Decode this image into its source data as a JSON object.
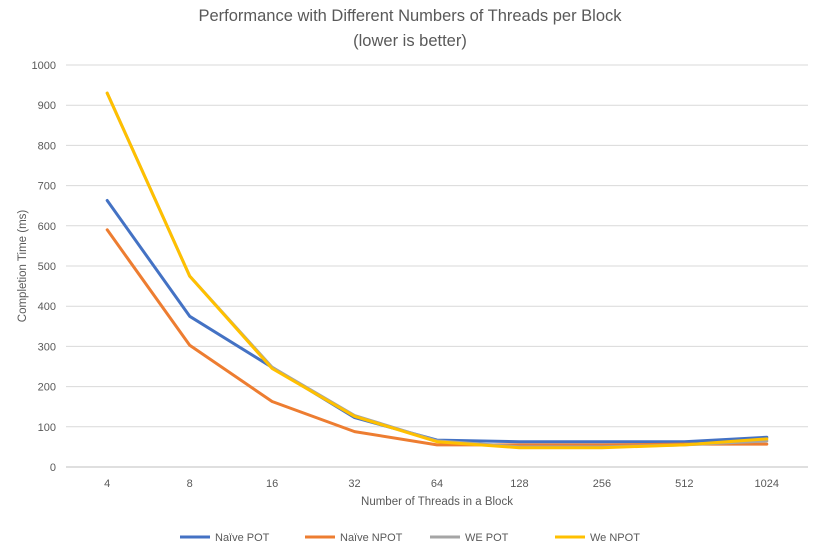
{
  "chart_data": {
    "type": "line",
    "title": "Performance with Different Numbers of Threads per Block",
    "subtitle": "(lower is better)",
    "xlabel": "Number of Threads in a Block",
    "ylabel": "Completion Time (ms)",
    "categories": [
      "4",
      "8",
      "16",
      "32",
      "64",
      "128",
      "256",
      "512",
      "1024"
    ],
    "ylim": [
      0,
      1000
    ],
    "yticks": [
      "0",
      "100",
      "200",
      "300",
      "400",
      "500",
      "600",
      "700",
      "800",
      "900",
      "1000"
    ],
    "grid": true,
    "legend_position": "bottom",
    "series": [
      {
        "name": "Naïve POT",
        "color": "#4472C4",
        "values": [
          663,
          375,
          248,
          123,
          67,
          63,
          63,
          63,
          74
        ]
      },
      {
        "name": "Naïve NPOT",
        "color": "#ED7D31",
        "values": [
          590,
          303,
          163,
          88,
          55,
          55,
          55,
          57,
          57
        ]
      },
      {
        "name": "WE POT",
        "color": "#A5A5A5",
        "values": [
          930,
          475,
          248,
          128,
          65,
          50,
          50,
          55,
          65
        ]
      },
      {
        "name": "We NPOT",
        "color": "#FFC000",
        "values": [
          930,
          475,
          245,
          126,
          63,
          48,
          48,
          55,
          70
        ]
      }
    ]
  }
}
